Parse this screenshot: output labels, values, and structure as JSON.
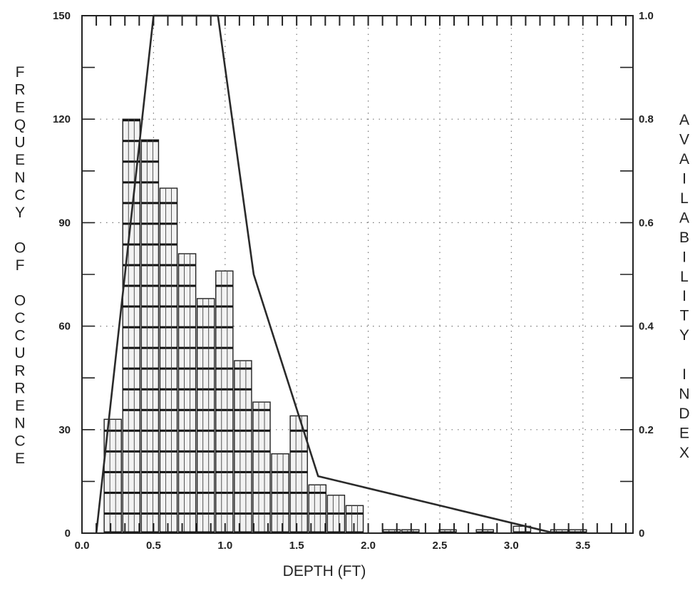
{
  "chart_data": {
    "type": "bar",
    "xlabel": "DEPTH (FT)",
    "ylabel_left": "FREQUENCY OF OCCURRENCE",
    "ylabel_right": "AVAILABILITY INDEX",
    "xlim": [
      0.0,
      3.85
    ],
    "ylim_left": [
      0,
      150
    ],
    "ylim_right": [
      0,
      1.0
    ],
    "x_ticks": [
      "0.0",
      "0.5",
      "1.0",
      "1.5",
      "2.0",
      "2.5",
      "3.0",
      "3.5"
    ],
    "y_left_ticks": [
      "0",
      "30",
      "60",
      "90",
      "120",
      "150"
    ],
    "y_right_ticks": [
      "0",
      "0.2",
      "0.4",
      "0.6",
      "0.8",
      "1.0"
    ],
    "grid": "dotted",
    "series": [
      {
        "kind": "bar",
        "axis": "left",
        "bin_width": 0.13,
        "x": [
          0.15,
          0.28,
          0.41,
          0.54,
          0.67,
          0.8,
          0.93,
          1.06,
          1.19,
          1.32,
          1.45,
          1.58,
          1.71,
          1.84,
          1.97,
          2.1,
          2.23,
          2.36,
          2.49,
          2.62,
          2.75,
          2.88,
          3.01,
          3.14,
          3.27,
          3.4
        ],
        "values": [
          33,
          120,
          114,
          100,
          81,
          68,
          76,
          50,
          38,
          23,
          34,
          14,
          11,
          8,
          0,
          1,
          1,
          0,
          1,
          0,
          1,
          0,
          2,
          0,
          1,
          1
        ]
      },
      {
        "kind": "line",
        "axis": "right",
        "x": [
          0.1,
          0.5,
          0.95,
          1.2,
          1.65,
          3.3
        ],
        "values": [
          0.0,
          1.0,
          1.0,
          0.5,
          0.11,
          0.0
        ]
      }
    ]
  }
}
